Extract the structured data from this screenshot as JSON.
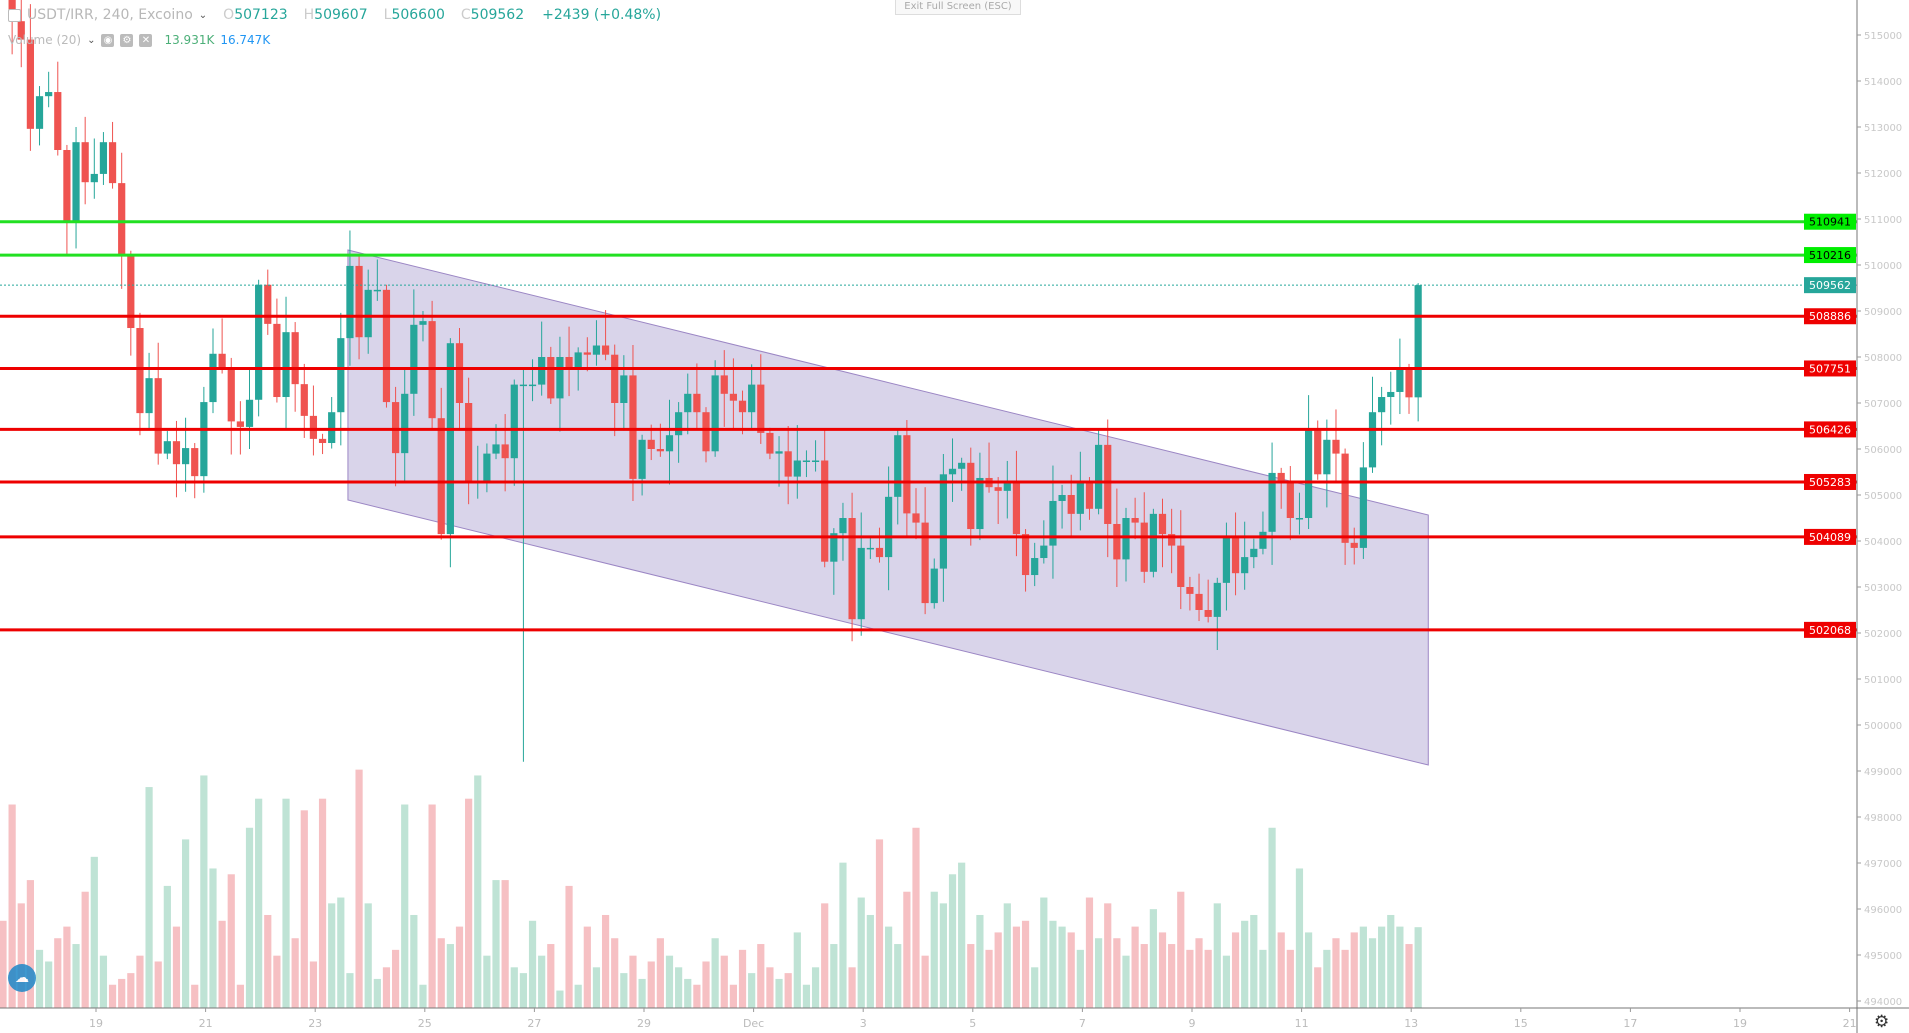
{
  "header": {
    "symbol": "USDT/IRR, 240, Excoino",
    "open_label": "O",
    "open": "507123",
    "high_label": "H",
    "high": "509607",
    "low_label": "L",
    "low": "506600",
    "close_label": "C",
    "close": "509562",
    "change": "+2439 (+0.48%)"
  },
  "volume_legend": {
    "label": "Volume (20)",
    "value": "13.931K",
    "ma_value": "16.747K",
    "icons": [
      "eye-icon",
      "gear-icon",
      "close-icon"
    ]
  },
  "exit_fullscreen": "Exit Full Screen (ESC)",
  "colors": {
    "up": "#26a69a",
    "down": "#ef5350",
    "support": "#ee0000",
    "resistance": "#22e022",
    "channel": "#d5cfe8",
    "last_price": "#26a69a"
  },
  "chart_data": {
    "type": "candlestick",
    "interval": "240",
    "ylim": [
      494000,
      515300
    ],
    "price_ticks": [
      "515000",
      "514000",
      "513000",
      "512000",
      "511000",
      "510000",
      "509000",
      "508000",
      "507000",
      "506000",
      "505000",
      "504000",
      "503000",
      "502000",
      "501000",
      "500000",
      "499000",
      "498000",
      "497000",
      "496000",
      "495000",
      "494000"
    ],
    "time_ticks": [
      "19",
      "21",
      "23",
      "25",
      "27",
      "29",
      "Dec",
      "3",
      "5",
      "7",
      "9",
      "11",
      "13",
      "15",
      "17",
      "19",
      "21"
    ],
    "last_candle": {
      "open": 507123,
      "high": 509607,
      "low": 506600,
      "close": 509562
    },
    "closes": [
      515900,
      515300,
      514900,
      512960,
      513670,
      513760,
      512500,
      510960,
      512670,
      511800,
      511980,
      512670,
      511780,
      510200,
      508630,
      506780,
      507540,
      505900,
      506170,
      505670,
      506020,
      505410,
      507020,
      508070,
      507760,
      506600,
      506480,
      507070,
      509570,
      508720,
      507130,
      508540,
      507410,
      506720,
      506220,
      506130,
      506800,
      508410,
      509980,
      508430,
      509460,
      509460,
      507020,
      505910,
      507200,
      508700,
      508780,
      506670,
      504150,
      508300,
      507000,
      505280,
      505300,
      505900,
      506100,
      505800,
      507400,
      507400,
      507400,
      508000,
      507100,
      508000,
      507750,
      508100,
      508050,
      508250,
      508050,
      507000,
      507600,
      505350,
      506200,
      506000,
      505950,
      506300,
      506800,
      507200,
      506800,
      505950,
      507600,
      507200,
      507050,
      506800,
      507400,
      506350,
      505900,
      505950,
      505400,
      505750,
      505750,
      505750,
      503550,
      504170,
      504500,
      502300,
      503850,
      503850,
      503650,
      504960,
      506300,
      504600,
      504400,
      502650,
      503400,
      505450,
      505570,
      505700,
      504260,
      505370,
      505170,
      505090,
      505300,
      504150,
      503260,
      503630,
      503900,
      504870,
      505000,
      504590,
      505280,
      504700,
      506090,
      504370,
      503600,
      504500,
      504400,
      503330,
      504590,
      504150,
      503900,
      503000,
      502850,
      502500,
      502350,
      503090,
      504070,
      503300,
      503650,
      503830,
      504200,
      505480,
      505300,
      504500,
      504500,
      506400,
      505450,
      506200,
      505900,
      503960,
      503850,
      505600,
      506800,
      507130,
      507240,
      507740,
      507123,
      509562
    ],
    "notable_low": {
      "candle": 57,
      "price": 499200
    },
    "volume_k": [
      15,
      35,
      18,
      22,
      10,
      8,
      12,
      14,
      11,
      20,
      26,
      9,
      4,
      5,
      6,
      9,
      38,
      8,
      21,
      14,
      29,
      4,
      40,
      24,
      15,
      23,
      4,
      31,
      36,
      16,
      9,
      36,
      12,
      34,
      8,
      36,
      18,
      19,
      6,
      41,
      18,
      5,
      7,
      10,
      35,
      16,
      4,
      35,
      12,
      11,
      14,
      36,
      40,
      9,
      22,
      22,
      7,
      6,
      15,
      9,
      11,
      3,
      21,
      4,
      14,
      7,
      16,
      12,
      6,
      9,
      5,
      8,
      12,
      9,
      7,
      5,
      4,
      8,
      12,
      9,
      4,
      10,
      6,
      11,
      7,
      5,
      6,
      13,
      4,
      7,
      18,
      11,
      25,
      7,
      19,
      16,
      29,
      14,
      11,
      20,
      31,
      9,
      20,
      18,
      23,
      25,
      11,
      16,
      10,
      13,
      18,
      14,
      15,
      7,
      19,
      15,
      14,
      13,
      10,
      19,
      12,
      18,
      12,
      9,
      14,
      11,
      17,
      13,
      11,
      20,
      10,
      12,
      10,
      18,
      9,
      13,
      15,
      16,
      10,
      31,
      13,
      10,
      24,
      13,
      7,
      10,
      12,
      10,
      13,
      14,
      12,
      14,
      16,
      14,
      11,
      13.9
    ],
    "horizontal_levels": [
      {
        "price": 510941,
        "label": "510941",
        "kind": "resistance"
      },
      {
        "price": 510216,
        "label": "510216",
        "kind": "resistance"
      },
      {
        "price": 508886,
        "label": "508886",
        "kind": "support"
      },
      {
        "price": 507751,
        "label": "507751",
        "kind": "support"
      },
      {
        "price": 506426,
        "label": "506426",
        "kind": "support"
      },
      {
        "price": 505283,
        "label": "505283",
        "kind": "support"
      },
      {
        "price": 504089,
        "label": "504089",
        "kind": "support"
      },
      {
        "price": 502068,
        "label": "502068",
        "kind": "support"
      }
    ],
    "last_price_label": "509562",
    "channel": {
      "start_candle": 38,
      "end_candle": 156,
      "top": [
        510326,
        504565
      ],
      "bottom": [
        504891,
        499130
      ]
    }
  }
}
